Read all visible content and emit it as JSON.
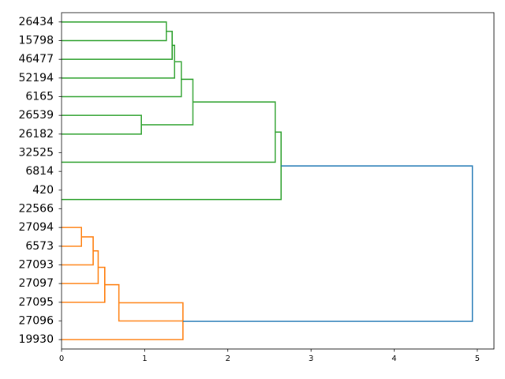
{
  "chart_data": {
    "type": "dendrogram",
    "orientation": "left",
    "xlim": [
      0,
      5.2
    ],
    "x_ticks": [
      "0",
      "1",
      "2",
      "3",
      "4",
      "5"
    ],
    "leaves": [
      "26434",
      "15798",
      "46477",
      "52194",
      "6165",
      "26539",
      "26182",
      "32525",
      "6814",
      "420",
      "22566",
      "27094",
      "6573",
      "27093",
      "27097",
      "27095",
      "27096",
      "19930"
    ],
    "clusters": [
      {
        "color": "#2ca02c",
        "leaves": [
          "26434",
          "15798",
          "46477",
          "52194",
          "6165",
          "26539",
          "26182",
          "32525",
          "6814",
          "420",
          "22566"
        ]
      },
      {
        "color": "#ff7f0e",
        "leaves": [
          "27094",
          "6573",
          "27093",
          "27097",
          "27095",
          "27096",
          "19930"
        ]
      }
    ],
    "above_threshold_color": "#1f77b4",
    "links": [
      {
        "top": 0,
        "bottom": 1,
        "height": 1.26,
        "color": "#2ca02c"
      },
      {
        "top": 0.5,
        "bottom": 2,
        "height": 1.33,
        "color": "#2ca02c"
      },
      {
        "top": 1.25,
        "bottom": 3,
        "height": 1.36,
        "color": "#2ca02c"
      },
      {
        "top": 2.125,
        "bottom": 4,
        "height": 1.44,
        "color": "#2ca02c"
      },
      {
        "top": 5,
        "bottom": 6,
        "height": 0.96,
        "color": "#2ca02c"
      },
      {
        "top": 3.0625,
        "bottom": 5.5,
        "height": 1.58,
        "color": "#2ca02c"
      },
      {
        "top": 4.28,
        "bottom": 7.5,
        "height": 2.57,
        "color": "#2ca02c"
      },
      {
        "top": 5.89,
        "bottom": 9.5,
        "height": 2.64,
        "color": "#2ca02c"
      },
      {
        "top": 11,
        "bottom": 12,
        "height": 0.24,
        "color": "#ff7f0e"
      },
      {
        "top": 11.5,
        "bottom": 13,
        "height": 0.38,
        "color": "#ff7f0e"
      },
      {
        "top": 12.25,
        "bottom": 14,
        "height": 0.44,
        "color": "#ff7f0e"
      },
      {
        "top": 13.125,
        "bottom": 15,
        "height": 0.52,
        "color": "#ff7f0e"
      },
      {
        "top": 14.06,
        "bottom": 16,
        "height": 0.69,
        "color": "#ff7f0e"
      },
      {
        "top": 15.03,
        "bottom": 17,
        "height": 1.46,
        "color": "#ff7f0e"
      },
      {
        "top": 7.7,
        "bottom": 16.02,
        "height": 4.94,
        "color": "#1f77b4"
      }
    ]
  }
}
